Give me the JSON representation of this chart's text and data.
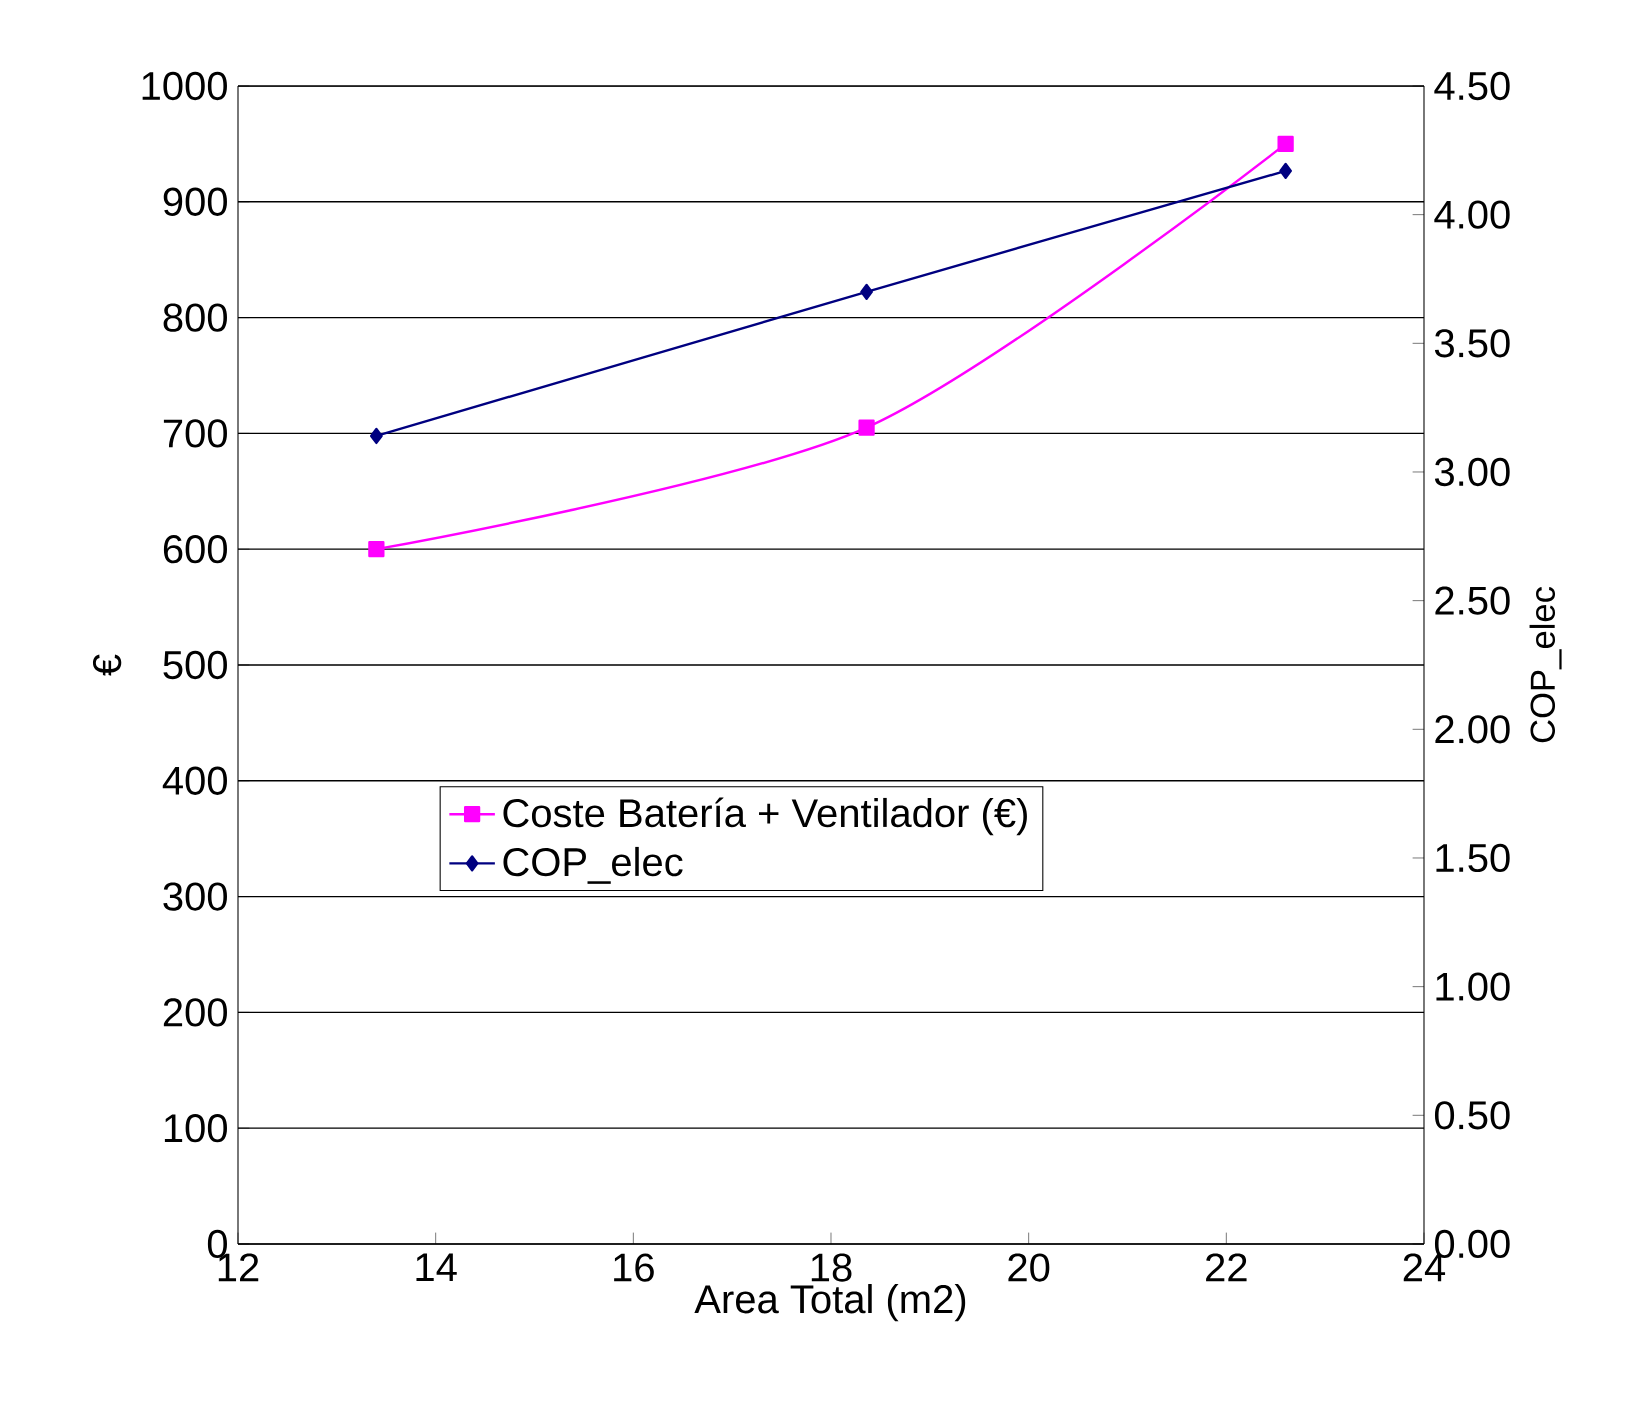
{
  "chart_data": {
    "type": "line",
    "xlabel": "Area Total (m2)",
    "ylabel": "€",
    "y2label": "COP_elec",
    "xlim": [
      12,
      24
    ],
    "xticks": [
      12,
      14,
      16,
      18,
      20,
      22,
      24
    ],
    "ylim": [
      0,
      1000
    ],
    "yticks": [
      0,
      100,
      200,
      300,
      400,
      500,
      600,
      700,
      800,
      900,
      1000
    ],
    "y2lim": [
      0,
      4.5
    ],
    "y2ticks": [
      {
        "value": 0,
        "label": "0.00"
      },
      {
        "value": 0.5,
        "label": "0.50"
      },
      {
        "value": 1,
        "label": "1.00"
      },
      {
        "value": 1.5,
        "label": "1.50"
      },
      {
        "value": 2,
        "label": "2.00"
      },
      {
        "value": 2.5,
        "label": "2.50"
      },
      {
        "value": 3,
        "label": "3.00"
      },
      {
        "value": 3.5,
        "label": "3.50"
      },
      {
        "value": 4,
        "label": "4.00"
      },
      {
        "value": 4.5,
        "label": "4.50"
      }
    ],
    "grid": "y",
    "legend": "left",
    "series": [
      {
        "name": "Coste Batería + Ventilador (€)",
        "color": "#ff00ff",
        "marker": "square",
        "x": [
          13.4,
          18.36,
          22.6
        ],
        "values": [
          600,
          705,
          950
        ]
      },
      {
        "name": "COP_elec",
        "color": "#000080",
        "marker": "diamond",
        "axis": "y2",
        "x": [
          13.4,
          18.36,
          22.6
        ],
        "values": [
          3.14,
          3.7,
          4.17
        ]
      }
    ]
  }
}
